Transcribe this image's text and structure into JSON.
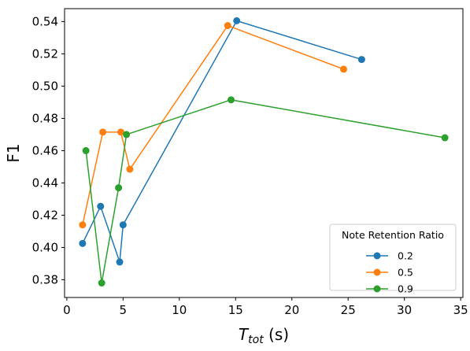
{
  "chart_data": {
    "type": "line",
    "xlabel_main": "T",
    "xlabel_sub": "tot",
    "xlabel_unit": " (s)",
    "ylabel": "F1",
    "xlim": [
      -0.2,
      35.2
    ],
    "ylim": [
      0.369,
      0.548
    ],
    "x_ticks": [
      0,
      5,
      10,
      15,
      20,
      25,
      30,
      35
    ],
    "y_ticks": [
      0.38,
      0.4,
      0.42,
      0.44,
      0.46,
      0.48,
      0.5,
      0.52,
      0.54
    ],
    "grid": false,
    "legend": {
      "title": "Note Retention Ratio",
      "position": "lower-right"
    },
    "series": [
      {
        "name": "0.2",
        "color": "#1f77b4",
        "points": [
          [
            1.4,
            0.4025
          ],
          [
            3.0,
            0.4255
          ],
          [
            4.7,
            0.391
          ],
          [
            5.0,
            0.414
          ],
          [
            15.1,
            0.5405
          ],
          [
            26.2,
            0.5165
          ]
        ]
      },
      {
        "name": "0.5",
        "color": "#ff7f0e",
        "points": [
          [
            1.4,
            0.414
          ],
          [
            3.2,
            0.4715
          ],
          [
            4.8,
            0.4715
          ],
          [
            5.6,
            0.4485
          ],
          [
            14.3,
            0.5375
          ],
          [
            24.6,
            0.5105
          ]
        ]
      },
      {
        "name": "0.9",
        "color": "#2ca02c",
        "points": [
          [
            1.7,
            0.46
          ],
          [
            3.1,
            0.378
          ],
          [
            4.6,
            0.437
          ],
          [
            5.3,
            0.47
          ],
          [
            14.6,
            0.4915
          ],
          [
            33.6,
            0.468
          ]
        ]
      }
    ]
  }
}
